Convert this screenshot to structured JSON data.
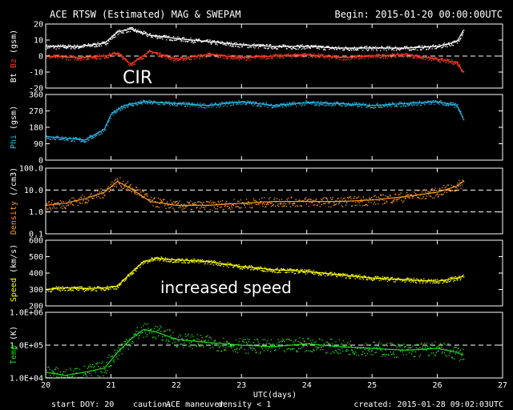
{
  "header": {
    "title": "ACE RTSW (Estimated) MAG & SWEPAM",
    "begin": "Begin: 2015-01-20 00:00:00UTC"
  },
  "footer": {
    "start_doy": "start DOY:  20",
    "caution_label": "caution:",
    "ace_maneuver": "ACE maneuver",
    "density_note": "density < 1",
    "created": "created: 2015-01-28 09:02:03UTC"
  },
  "annotations": {
    "cir": "CIR",
    "speed": "increased speed"
  },
  "colors": {
    "bt": "#ffffff",
    "bz": "#ff3b1e",
    "phi": "#29b8e8",
    "density": "#ff9a1e",
    "speed": "#ffff00",
    "temp": "#22dd22",
    "ace_maneuver": "#ffff00",
    "density_note": "#ff9a1e"
  },
  "chart_data": {
    "type": "scatter",
    "xlabel": "UTC(days)",
    "x_range": [
      20,
      27
    ],
    "x_ticks": [
      "20",
      "21",
      "22",
      "23",
      "24",
      "25",
      "26",
      "27"
    ],
    "panels": [
      {
        "id": "mag",
        "ylabel_parts": [
          {
            "text": "Bt",
            "color": "#ffffff"
          },
          {
            "text": "Bz",
            "color": "#ff3b1e"
          },
          {
            "text": "(gsm)",
            "color": "#ffffff"
          }
        ],
        "ylim": [
          -20,
          20
        ],
        "yticks": [
          "20",
          "10",
          "0",
          "-10",
          "-20"
        ],
        "dashed_at": [
          0
        ],
        "series": [
          {
            "name": "Bt",
            "color": "#ffffff",
            "x": [
              20.0,
              20.5,
              20.9,
              21.1,
              21.3,
              21.6,
              22.0,
              22.5,
              23.0,
              23.5,
              24.0,
              24.5,
              25.0,
              25.5,
              26.0,
              26.3,
              26.4
            ],
            "y": [
              6,
              6,
              8,
              15,
              17,
              13,
              11,
              9,
              7,
              6,
              6,
              5,
              5,
              5,
              6,
              9,
              16
            ]
          },
          {
            "name": "Bz",
            "color": "#ff3b1e",
            "x": [
              20.0,
              20.5,
              20.9,
              21.1,
              21.3,
              21.6,
              22.0,
              22.5,
              23.0,
              23.5,
              24.0,
              24.5,
              25.0,
              25.5,
              26.0,
              26.3,
              26.4
            ],
            "y": [
              0,
              -1,
              0,
              2,
              -5,
              3,
              -2,
              1,
              -1,
              0,
              1,
              -1,
              0,
              1,
              -2,
              -4,
              -10
            ]
          }
        ]
      },
      {
        "id": "phi",
        "ylabel_parts": [
          {
            "text": "Phi",
            "color": "#29b8e8"
          },
          {
            "text": "(gsm)",
            "color": "#ffffff"
          }
        ],
        "ylim": [
          0,
          360
        ],
        "yticks": [
          "360",
          "270",
          "180",
          "90",
          "0"
        ],
        "dashed_at": [],
        "series": [
          {
            "name": "Phi",
            "color": "#29b8e8",
            "x": [
              20.0,
              20.3,
              20.6,
              20.9,
              21.0,
              21.2,
              21.5,
              22.0,
              22.5,
              23.0,
              23.5,
              24.0,
              24.5,
              25.0,
              25.5,
              26.0,
              26.3,
              26.4
            ],
            "y": [
              130,
              120,
              110,
              170,
              250,
              300,
              320,
              310,
              300,
              320,
              300,
              315,
              310,
              300,
              310,
              320,
              300,
              230
            ]
          }
        ]
      },
      {
        "id": "density",
        "ylabel_parts": [
          {
            "text": "Density",
            "color": "#ff9a1e"
          },
          {
            "text": "(/cm3)",
            "color": "#ffffff"
          }
        ],
        "scale": "log",
        "ylim": [
          0.1,
          100
        ],
        "yticks": [
          "100.0",
          "10.0",
          "1.0",
          "0.1"
        ],
        "dashed_at": [
          10,
          1
        ],
        "series": [
          {
            "name": "Density",
            "color": "#ff9a1e",
            "x": [
              20.0,
              20.3,
              20.6,
              20.9,
              21.1,
              21.3,
              21.6,
              22.0,
              22.5,
              23.0,
              23.5,
              24.0,
              24.5,
              25.0,
              25.5,
              26.0,
              26.3,
              26.4
            ],
            "y": [
              2,
              2.5,
              4,
              8,
              25,
              12,
              3,
              2,
              2,
              2.5,
              3,
              3,
              3,
              3.5,
              5,
              8,
              15,
              25
            ]
          }
        ]
      },
      {
        "id": "speed",
        "ylabel_parts": [
          {
            "text": "Speed",
            "color": "#ffff00"
          },
          {
            "text": "(km/s)",
            "color": "#ffffff"
          }
        ],
        "ylim": [
          200,
          600
        ],
        "yticks": [
          "600",
          "500",
          "400",
          "300",
          "200"
        ],
        "dashed_at": [],
        "series": [
          {
            "name": "Speed",
            "color": "#ffff00",
            "x": [
              20.0,
              20.3,
              20.6,
              20.9,
              21.1,
              21.3,
              21.5,
              21.7,
              22.0,
              22.5,
              23.0,
              23.5,
              24.0,
              24.5,
              25.0,
              25.5,
              26.0,
              26.3,
              26.4
            ],
            "y": [
              300,
              310,
              305,
              310,
              320,
              400,
              470,
              490,
              480,
              470,
              440,
              420,
              410,
              390,
              370,
              360,
              350,
              370,
              380
            ]
          }
        ]
      },
      {
        "id": "temp",
        "ylabel_parts": [
          {
            "text": "Temp",
            "color": "#22dd22"
          },
          {
            "text": "(K)",
            "color": "#ffffff"
          }
        ],
        "scale": "log",
        "ylim": [
          10000,
          1000000
        ],
        "yticks": [
          "1.0E+06",
          "1.0E+05",
          "1.0E+04"
        ],
        "dashed_at": [
          100000
        ],
        "series": [
          {
            "name": "Temp",
            "color": "#22dd22",
            "x": [
              20.0,
              20.3,
              20.6,
              20.9,
              21.1,
              21.3,
              21.5,
              21.7,
              22.0,
              22.5,
              23.0,
              23.5,
              24.0,
              24.5,
              25.0,
              25.5,
              26.0,
              26.3,
              26.4
            ],
            "y": [
              15000,
              12000,
              15000,
              20000,
              60000,
              150000,
              300000,
              250000,
              150000,
              120000,
              100000,
              90000,
              110000,
              90000,
              80000,
              70000,
              80000,
              60000,
              50000
            ]
          }
        ]
      }
    ]
  }
}
